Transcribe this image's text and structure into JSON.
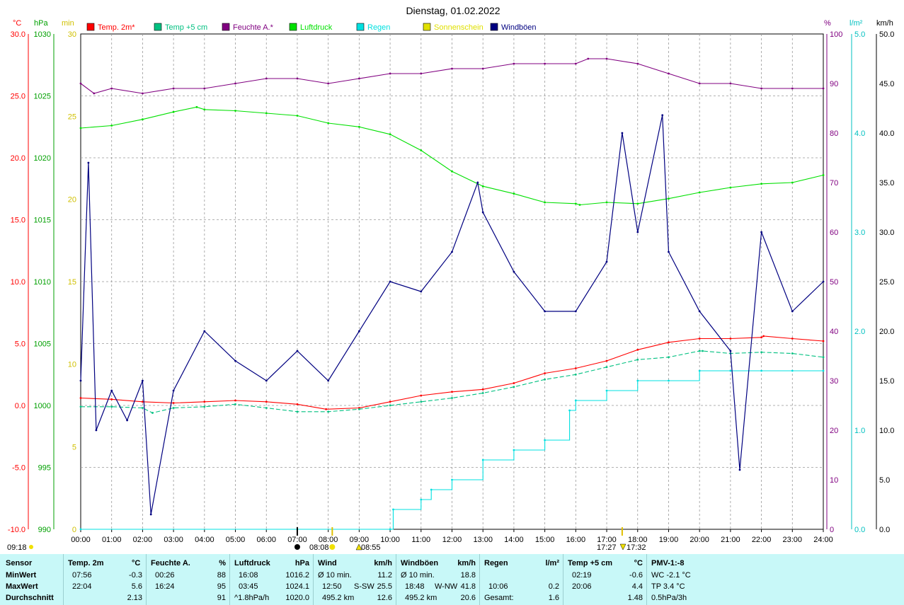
{
  "title": "Dienstag, 01.02.2022",
  "legend": [
    {
      "label": "Temp. 2m*",
      "color": "#ff0000"
    },
    {
      "label": "Temp +5 cm",
      "color": "#00c080"
    },
    {
      "label": "Feuchte A.*",
      "color": "#800080"
    },
    {
      "label": "Luftdruck",
      "color": "#00e000"
    },
    {
      "label": "Regen",
      "color": "#00e0e0"
    },
    {
      "label": "Sonnenschein",
      "color": "#e0e000"
    },
    {
      "label": "Windböen",
      "color": "#000080"
    }
  ],
  "axes": {
    "celsius": {
      "unit": "°C",
      "ticks": [
        "30.0",
        "25.0",
        "20.0",
        "15.0",
        "10.0",
        "5.0",
        "0.0",
        "-5.0",
        "-10.0"
      ],
      "color": "#ff0000"
    },
    "hpa": {
      "unit": "hPa",
      "ticks": [
        "1030",
        "1025",
        "1020",
        "1015",
        "1010",
        "1005",
        "1000",
        "995",
        "990"
      ],
      "color": "#00a000"
    },
    "min": {
      "unit": "min",
      "ticks": [
        "30",
        "25",
        "20",
        "15",
        "10",
        "5",
        "0"
      ],
      "color": "#d0c000"
    },
    "percent": {
      "unit": "%",
      "ticks": [
        "100",
        "90",
        "80",
        "70",
        "60",
        "50",
        "40",
        "30",
        "20",
        "10",
        "0"
      ],
      "color": "#800080"
    },
    "rain": {
      "unit": "l/m²",
      "ticks": [
        "5.0",
        "4.0",
        "3.0",
        "2.0",
        "1.0",
        "0.0"
      ],
      "color": "#00c0c0"
    },
    "kmh": {
      "unit": "km/h",
      "ticks": [
        "50.0",
        "45.0",
        "40.0",
        "35.0",
        "30.0",
        "25.0",
        "20.0",
        "15.0",
        "10.0",
        "5.0",
        "0.0"
      ],
      "color": "#000000"
    },
    "time_ticks": [
      "00:00",
      "01:00",
      "02:00",
      "03:00",
      "04:00",
      "05:00",
      "06:00",
      "07:00",
      "08:00",
      "09:00",
      "10:00",
      "11:00",
      "12:00",
      "13:00",
      "14:00",
      "15:00",
      "16:00",
      "17:00",
      "18:00",
      "19:00",
      "20:00",
      "21:00",
      "22:00",
      "23:00",
      "24:00"
    ]
  },
  "markers": {
    "sunrise_label": "08:08",
    "sunset_label": "17:27",
    "sunset2_label": "17:32",
    "noon_label": "08:55",
    "left_label": "09:18",
    "moon_label": "07:00"
  },
  "chart_data": {
    "type": "line",
    "title": "Dienstag, 01.02.2022",
    "x_unit": "hours",
    "series": [
      {
        "name": "Temp. 2m*",
        "unit": "°C",
        "color": "#ff0000",
        "x": [
          0,
          1,
          2,
          3,
          4,
          5,
          6,
          7,
          7.93,
          9,
          10,
          11,
          12,
          13,
          14,
          15,
          16,
          17,
          18,
          19,
          20,
          21,
          22,
          22.07,
          23,
          24
        ],
        "y": [
          0.6,
          0.5,
          0.3,
          0.2,
          0.3,
          0.4,
          0.3,
          0.1,
          -0.3,
          -0.2,
          0.3,
          0.8,
          1.1,
          1.3,
          1.8,
          2.6,
          3.0,
          3.6,
          4.5,
          5.1,
          5.4,
          5.4,
          5.5,
          5.6,
          5.4,
          5.2
        ]
      },
      {
        "name": "Temp +5 cm",
        "unit": "°C",
        "color": "#00c080",
        "x": [
          0,
          1,
          2,
          2.32,
          3,
          4,
          5,
          6,
          7,
          8,
          9,
          10,
          11,
          12,
          13,
          14,
          15,
          16,
          17,
          18,
          19,
          20,
          20.1,
          21,
          22,
          23,
          24
        ],
        "y": [
          -0.1,
          -0.1,
          -0.2,
          -0.6,
          -0.2,
          -0.1,
          0.1,
          -0.2,
          -0.5,
          -0.5,
          -0.3,
          0.0,
          0.3,
          0.6,
          1.0,
          1.5,
          2.1,
          2.5,
          3.1,
          3.7,
          3.9,
          4.4,
          4.4,
          4.2,
          4.3,
          4.2,
          3.9
        ]
      },
      {
        "name": "Feuchte A.*",
        "unit": "%",
        "color": "#800080",
        "x": [
          0,
          0.43,
          1,
          2,
          3,
          4,
          5,
          6,
          7,
          8,
          9,
          10,
          11,
          12,
          13,
          14,
          15,
          16,
          16.4,
          17,
          18,
          19,
          20,
          21,
          22,
          23,
          24
        ],
        "y": [
          90,
          88,
          89,
          88,
          89,
          89,
          90,
          91,
          91,
          90,
          91,
          92,
          92,
          93,
          93,
          94,
          94,
          94,
          95,
          95,
          94,
          92,
          90,
          90,
          89,
          89,
          89
        ]
      },
      {
        "name": "Luftdruck",
        "unit": "hPa",
        "color": "#00e000",
        "x": [
          0,
          1,
          2,
          3,
          3.75,
          4,
          5,
          6,
          7,
          8,
          9,
          10,
          11,
          12,
          13,
          14,
          15,
          16,
          16.13,
          17,
          18,
          19,
          20,
          21,
          22,
          23,
          24
        ],
        "y": [
          1022.4,
          1022.6,
          1023.1,
          1023.7,
          1024.1,
          1023.9,
          1023.8,
          1023.6,
          1023.4,
          1022.8,
          1022.5,
          1021.9,
          1020.6,
          1018.9,
          1017.7,
          1017.1,
          1016.4,
          1016.3,
          1016.2,
          1016.4,
          1016.3,
          1016.7,
          1017.2,
          1017.6,
          1017.9,
          1018.0,
          1018.6
        ]
      },
      {
        "name": "Regen",
        "unit": "l/m²",
        "color": "#00e0e0",
        "x": [
          0,
          10,
          10.1,
          11,
          11.33,
          12,
          13,
          14,
          15,
          15.8,
          16,
          17,
          18,
          19,
          20,
          21,
          22,
          23,
          24
        ],
        "y": [
          0,
          0,
          0.2,
          0.3,
          0.4,
          0.5,
          0.7,
          0.8,
          0.9,
          1.2,
          1.3,
          1.4,
          1.5,
          1.5,
          1.6,
          1.6,
          1.6,
          1.6,
          1.6
        ]
      },
      {
        "name": "Sonnenschein",
        "unit": "min",
        "color": "#e0e000",
        "x": [
          8.1,
          9.0,
          17.5
        ],
        "y": [
          0,
          0,
          0
        ]
      },
      {
        "name": "Windböen",
        "unit": "km/h",
        "color": "#000080",
        "x": [
          0,
          0.25,
          0.5,
          1,
          1.5,
          2,
          2.27,
          3,
          4,
          5,
          6,
          7,
          8,
          9,
          10,
          11,
          12,
          12.83,
          13,
          14,
          15,
          16,
          17,
          17.5,
          18,
          18.8,
          19,
          20,
          21,
          21.3,
          22,
          23,
          24
        ],
        "y": [
          15,
          37,
          10,
          14,
          11,
          15,
          1.5,
          14,
          20,
          17,
          15,
          18,
          15,
          20,
          25,
          24,
          28,
          35,
          32,
          26,
          22,
          22,
          27,
          40,
          30,
          41.8,
          28,
          22,
          18,
          6,
          30,
          22,
          25
        ]
      }
    ]
  },
  "stats": {
    "headers": {
      "sensor": "Sensor",
      "minwert": "MinWert",
      "maxwert": "MaxWert",
      "durchschnitt": "Durchschnitt"
    },
    "temp2m": {
      "title": "Temp. 2m",
      "unit": "°C",
      "min_time": "07:56",
      "min_val": "-0.3",
      "max_time": "22:04",
      "max_val": "5.6",
      "avg": "2.13"
    },
    "feuchte": {
      "title": "Feuchte A.",
      "unit": "%",
      "min_time": "00:26",
      "min_val": "88",
      "max_time": "16:24",
      "max_val": "95",
      "avg": "91"
    },
    "luftdruck": {
      "title": "Luftdruck",
      "unit": "hPa",
      "min_time": "16:08",
      "min_val": "1016.2",
      "max_time": "03:45",
      "max_val": "1024.1",
      "avg_label": "^1.8hPa/h",
      "avg": "1020.0"
    },
    "wind": {
      "title": "Wind",
      "unit": "km/h",
      "r1_label": "Ø 10 min.",
      "r1_val": "11.2",
      "r2_time": "12:50",
      "r2_dir": "S-SW",
      "r2_val": "25.5",
      "r3_label": "495.2 km",
      "r3_val": "12.6"
    },
    "windboeen": {
      "title": "Windböen",
      "unit": "km/h",
      "r1_label": "Ø 10 min.",
      "r1_val": "18.8",
      "r2_time": "18:48",
      "r2_dir": "W-NW",
      "r2_val": "41.8",
      "r3_label": "495.2 km",
      "r3_val": "20.6"
    },
    "regen": {
      "title": "Regen",
      "unit": "l/m²",
      "r2_time": "10:06",
      "r2_val": "0.2",
      "r3_label": "Gesamt:",
      "r3_val": "1.6"
    },
    "temp5cm": {
      "title": "Temp +5 cm",
      "unit": "°C",
      "min_time": "02:19",
      "min_val": "-0.6",
      "max_time": "20:06",
      "max_val": "4.4",
      "avg": "1.48"
    },
    "pmv": {
      "title": "PMV-1:-8",
      "r1": "WC -2.1 °C",
      "r2": "TP 3.4 °C",
      "r3": "0.5hPa/3h"
    }
  }
}
